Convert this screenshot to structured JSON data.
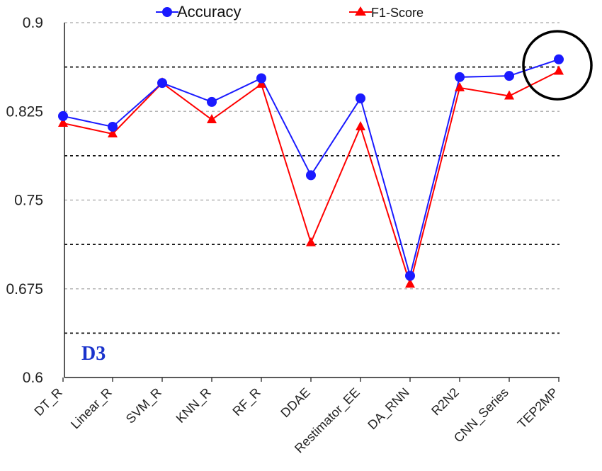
{
  "chart_data": {
    "type": "line",
    "categories": [
      "DT_R",
      "Linear_R",
      "SVM_R",
      "KNN_R",
      "RF_R",
      "DDAE",
      "Restimator_EE",
      "DA_RNN",
      "R2N2",
      "CNN_Series",
      "TEP2MP"
    ],
    "series": [
      {
        "name": "Accuracy",
        "color": "#1a1aff",
        "marker": "circle",
        "values": [
          0.821,
          0.812,
          0.849,
          0.833,
          0.853,
          0.771,
          0.836,
          0.686,
          0.854,
          0.855,
          0.869
        ]
      },
      {
        "name": "F1-Score",
        "color": "#ff0000",
        "marker": "triangle",
        "values": [
          0.815,
          0.806,
          0.849,
          0.818,
          0.848,
          0.714,
          0.812,
          0.679,
          0.845,
          0.838,
          0.859
        ]
      }
    ],
    "ylim": [
      0.6,
      0.9
    ],
    "y_ticks": [
      "0.6",
      "0.675",
      "0.75",
      "0.825",
      "0.9"
    ],
    "panel_label": "D3",
    "panel_label_color": "#1a33cc",
    "highlight": "TEP2MP",
    "legend_position": "top"
  }
}
